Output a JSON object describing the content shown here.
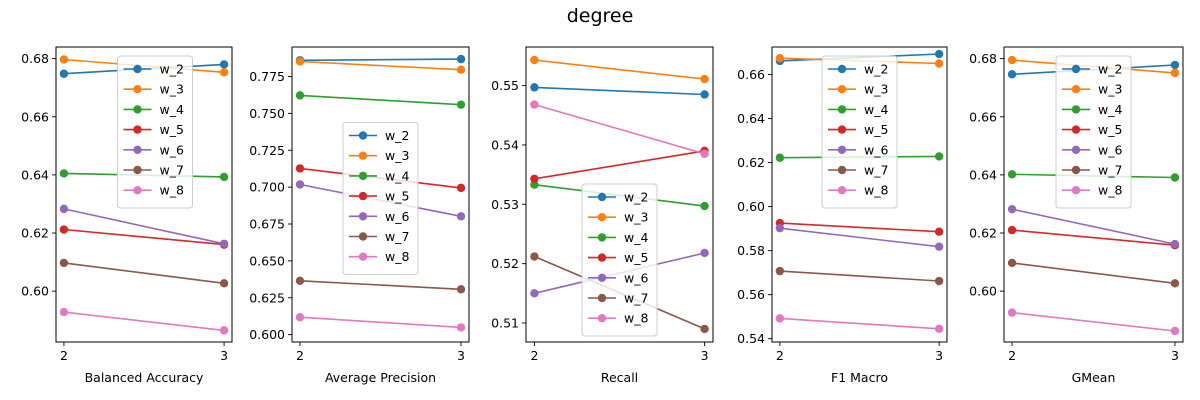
{
  "figure": {
    "title": "degree"
  },
  "series_colors": {
    "w_2": "#1f77b4",
    "w_3": "#ff7f0e",
    "w_4": "#2ca02c",
    "w_5": "#d62728",
    "w_6": "#9467bd",
    "w_7": "#8c564b",
    "w_8": "#e377c2"
  },
  "chart_data": [
    {
      "type": "line",
      "xlabel": "Balanced Accuracy",
      "x": [
        2,
        3
      ],
      "x_ticks": [
        "2",
        "3"
      ],
      "ylim": [
        0.5825,
        0.684
      ],
      "y_ticks": [
        0.6,
        0.62,
        0.64,
        0.66,
        0.68
      ],
      "y_tick_labels": [
        "0.60",
        "0.62",
        "0.64",
        "0.66",
        "0.68"
      ],
      "legend": "top-center",
      "series": [
        {
          "name": "w_2",
          "values": [
            0.6748,
            0.678
          ]
        },
        {
          "name": "w_3",
          "values": [
            0.6797,
            0.6753
          ]
        },
        {
          "name": "w_4",
          "values": [
            0.6405,
            0.6393
          ]
        },
        {
          "name": "w_5",
          "values": [
            0.6212,
            0.616
          ]
        },
        {
          "name": "w_6",
          "values": [
            0.6283,
            0.6163
          ]
        },
        {
          "name": "w_7",
          "values": [
            0.6097,
            0.6027
          ]
        },
        {
          "name": "w_8",
          "values": [
            0.5928,
            0.5865
          ]
        }
      ]
    },
    {
      "type": "line",
      "xlabel": "Average Precision",
      "x": [
        2,
        3
      ],
      "x_ticks": [
        "2",
        "3"
      ],
      "ylim": [
        0.595,
        0.795
      ],
      "y_ticks": [
        0.6,
        0.625,
        0.65,
        0.675,
        0.7,
        0.725,
        0.75,
        0.775
      ],
      "y_tick_labels": [
        "0.600",
        "0.625",
        "0.650",
        "0.675",
        "0.700",
        "0.725",
        "0.750",
        "0.775"
      ],
      "legend": "center",
      "series": [
        {
          "name": "w_2",
          "values": [
            0.786,
            0.7868
          ]
        },
        {
          "name": "w_3",
          "values": [
            0.7852,
            0.7796
          ]
        },
        {
          "name": "w_4",
          "values": [
            0.7622,
            0.7559
          ]
        },
        {
          "name": "w_5",
          "values": [
            0.7127,
            0.6995
          ]
        },
        {
          "name": "w_6",
          "values": [
            0.7018,
            0.6802
          ]
        },
        {
          "name": "w_7",
          "values": [
            0.6365,
            0.6307
          ]
        },
        {
          "name": "w_8",
          "values": [
            0.6118,
            0.6049
          ]
        }
      ]
    },
    {
      "type": "line",
      "xlabel": "Recall",
      "x": [
        2,
        3
      ],
      "x_ticks": [
        "2",
        "3"
      ],
      "ylim": [
        0.5068,
        0.5565
      ],
      "y_ticks": [
        0.51,
        0.52,
        0.53,
        0.54,
        0.55
      ],
      "y_tick_labels": [
        "0.51",
        "0.52",
        "0.53",
        "0.54",
        "0.55"
      ],
      "legend": "bottom-center",
      "series": [
        {
          "name": "w_2",
          "values": [
            0.5497,
            0.5485
          ]
        },
        {
          "name": "w_3",
          "values": [
            0.5543,
            0.5511
          ]
        },
        {
          "name": "w_4",
          "values": [
            0.5333,
            0.5297
          ]
        },
        {
          "name": "w_5",
          "values": [
            0.5343,
            0.539
          ]
        },
        {
          "name": "w_6",
          "values": [
            0.515,
            0.5218
          ]
        },
        {
          "name": "w_7",
          "values": [
            0.5212,
            0.509
          ]
        },
        {
          "name": "w_8",
          "values": [
            0.5468,
            0.5385
          ]
        }
      ]
    },
    {
      "type": "line",
      "xlabel": "F1 Macro",
      "x": [
        2,
        3
      ],
      "x_ticks": [
        "2",
        "3"
      ],
      "ylim": [
        0.5385,
        0.6725
      ],
      "y_ticks": [
        0.54,
        0.56,
        0.58,
        0.6,
        0.62,
        0.64,
        0.66
      ],
      "y_tick_labels": [
        "0.54",
        "0.56",
        "0.58",
        "0.60",
        "0.62",
        "0.64",
        "0.66"
      ],
      "legend": "top-center",
      "series": [
        {
          "name": "w_2",
          "values": [
            0.6662,
            0.6693
          ]
        },
        {
          "name": "w_3",
          "values": [
            0.6674,
            0.665
          ]
        },
        {
          "name": "w_4",
          "values": [
            0.6222,
            0.6228
          ]
        },
        {
          "name": "w_5",
          "values": [
            0.5925,
            0.5886
          ]
        },
        {
          "name": "w_6",
          "values": [
            0.5902,
            0.5818
          ]
        },
        {
          "name": "w_7",
          "values": [
            0.5707,
            0.5662
          ]
        },
        {
          "name": "w_8",
          "values": [
            0.5492,
            0.5445
          ]
        }
      ]
    },
    {
      "type": "line",
      "xlabel": "GMean",
      "x": [
        2,
        3
      ],
      "x_ticks": [
        "2",
        "3"
      ],
      "ylim": [
        0.5825,
        0.684
      ],
      "y_ticks": [
        0.6,
        0.62,
        0.64,
        0.66,
        0.68
      ],
      "y_tick_labels": [
        "0.60",
        "0.62",
        "0.64",
        "0.66",
        "0.68"
      ],
      "legend": "top-center",
      "series": [
        {
          "name": "w_2",
          "values": [
            0.6746,
            0.6778
          ]
        },
        {
          "name": "w_3",
          "values": [
            0.6795,
            0.6751
          ]
        },
        {
          "name": "w_4",
          "values": [
            0.6402,
            0.6391
          ]
        },
        {
          "name": "w_5",
          "values": [
            0.621,
            0.6158
          ]
        },
        {
          "name": "w_6",
          "values": [
            0.6282,
            0.6162
          ]
        },
        {
          "name": "w_7",
          "values": [
            0.6097,
            0.6027
          ]
        },
        {
          "name": "w_8",
          "values": [
            0.5926,
            0.5863
          ]
        }
      ]
    }
  ]
}
